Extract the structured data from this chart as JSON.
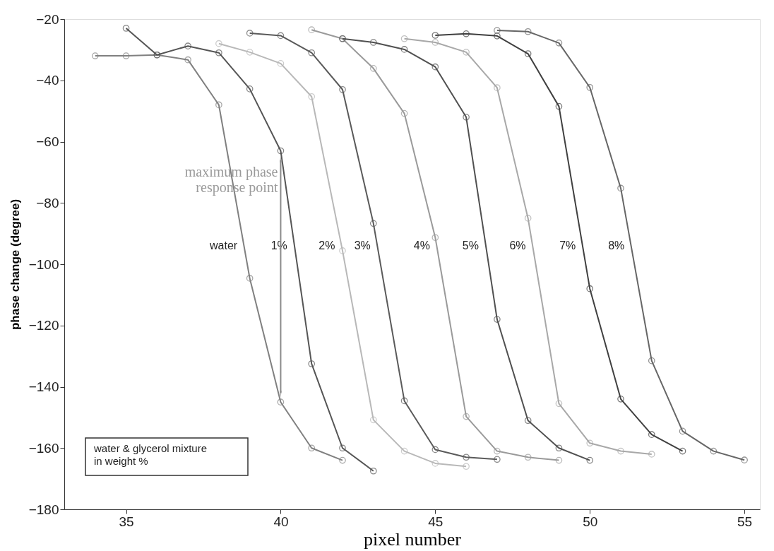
{
  "chart_data": {
    "type": "line",
    "xlabel": "pixel number",
    "ylabel": "phase change (degree)",
    "xlim": [
      33,
      55.5
    ],
    "xticks": [
      35,
      40,
      45,
      50,
      55
    ],
    "ylim": [
      -180,
      -20
    ],
    "yticks": [
      -180,
      -160,
      -140,
      -120,
      -100,
      -80,
      -60,
      -40,
      -20
    ],
    "grid": false,
    "marker": "circle",
    "line_style": "solid",
    "series": [
      {
        "name": "water",
        "color": "#808080",
        "x": [
          34,
          35,
          36,
          37,
          38,
          39,
          40,
          41,
          42
        ],
        "values": [
          -32,
          -32,
          -31.7,
          -33.3,
          -48,
          -104.6,
          -145,
          -160,
          -164
        ]
      },
      {
        "name": "1%",
        "color": "#555555",
        "x": [
          35,
          36,
          37,
          38,
          39,
          40,
          41,
          42,
          43
        ],
        "values": [
          -23,
          -31.7,
          -28.8,
          -31,
          -42.8,
          -63,
          -132.5,
          -160,
          -167.5
        ]
      },
      {
        "name": "2%",
        "color": "#b8b8b8",
        "x": [
          38,
          39,
          40,
          41,
          42,
          43,
          44,
          45,
          46
        ],
        "values": [
          -28,
          -30.8,
          -34.5,
          -45.3,
          -95.6,
          -150.8,
          -161,
          -165,
          -166
        ]
      },
      {
        "name": "3%",
        "color": "#5a5a5a",
        "x": [
          39,
          40,
          41,
          42,
          43,
          44,
          45,
          46,
          47
        ],
        "values": [
          -24.6,
          -25.4,
          -31,
          -43,
          -86.7,
          -144.6,
          -160.5,
          -163,
          -163.7
        ]
      },
      {
        "name": "4%",
        "color": "#9a9a9a",
        "x": [
          41,
          42,
          43,
          44,
          45,
          46,
          47,
          48,
          49
        ],
        "values": [
          -23.5,
          -26.4,
          -36.1,
          -50.8,
          -91.3,
          -149.7,
          -161,
          -163,
          -164
        ]
      },
      {
        "name": "5%",
        "color": "#505050",
        "x": [
          42,
          43,
          44,
          45,
          46,
          47,
          48,
          49,
          50
        ],
        "values": [
          -26.4,
          -27.6,
          -29.9,
          -35.6,
          -52,
          -118,
          -151,
          -160,
          -164
        ]
      },
      {
        "name": "6%",
        "color": "#a8a8a8",
        "x": [
          44,
          45,
          46,
          47,
          48,
          49,
          50,
          51,
          52
        ],
        "values": [
          -26.4,
          -27.6,
          -30.8,
          -42.4,
          -85,
          -145.5,
          -158.4,
          -161,
          -162
        ]
      },
      {
        "name": "7%",
        "color": "#404040",
        "x": [
          45,
          46,
          47,
          48,
          49,
          50,
          51,
          52,
          53
        ],
        "values": [
          -25.3,
          -24.8,
          -25.5,
          -31.3,
          -48.5,
          -108,
          -144,
          -155.6,
          -161
        ]
      },
      {
        "name": "8%",
        "color": "#666666",
        "x": [
          47,
          48,
          49,
          50,
          51,
          52,
          53,
          54,
          55
        ],
        "values": [
          -23.7,
          -24.1,
          -27.8,
          -42.3,
          -75.2,
          -131.5,
          -154.5,
          -161,
          -163.9
        ]
      }
    ],
    "annotations": [
      {
        "text": "maximum phase response point",
        "x": 40,
        "y": -63
      },
      "water & glycerol mixture\nin weight %"
    ]
  }
}
